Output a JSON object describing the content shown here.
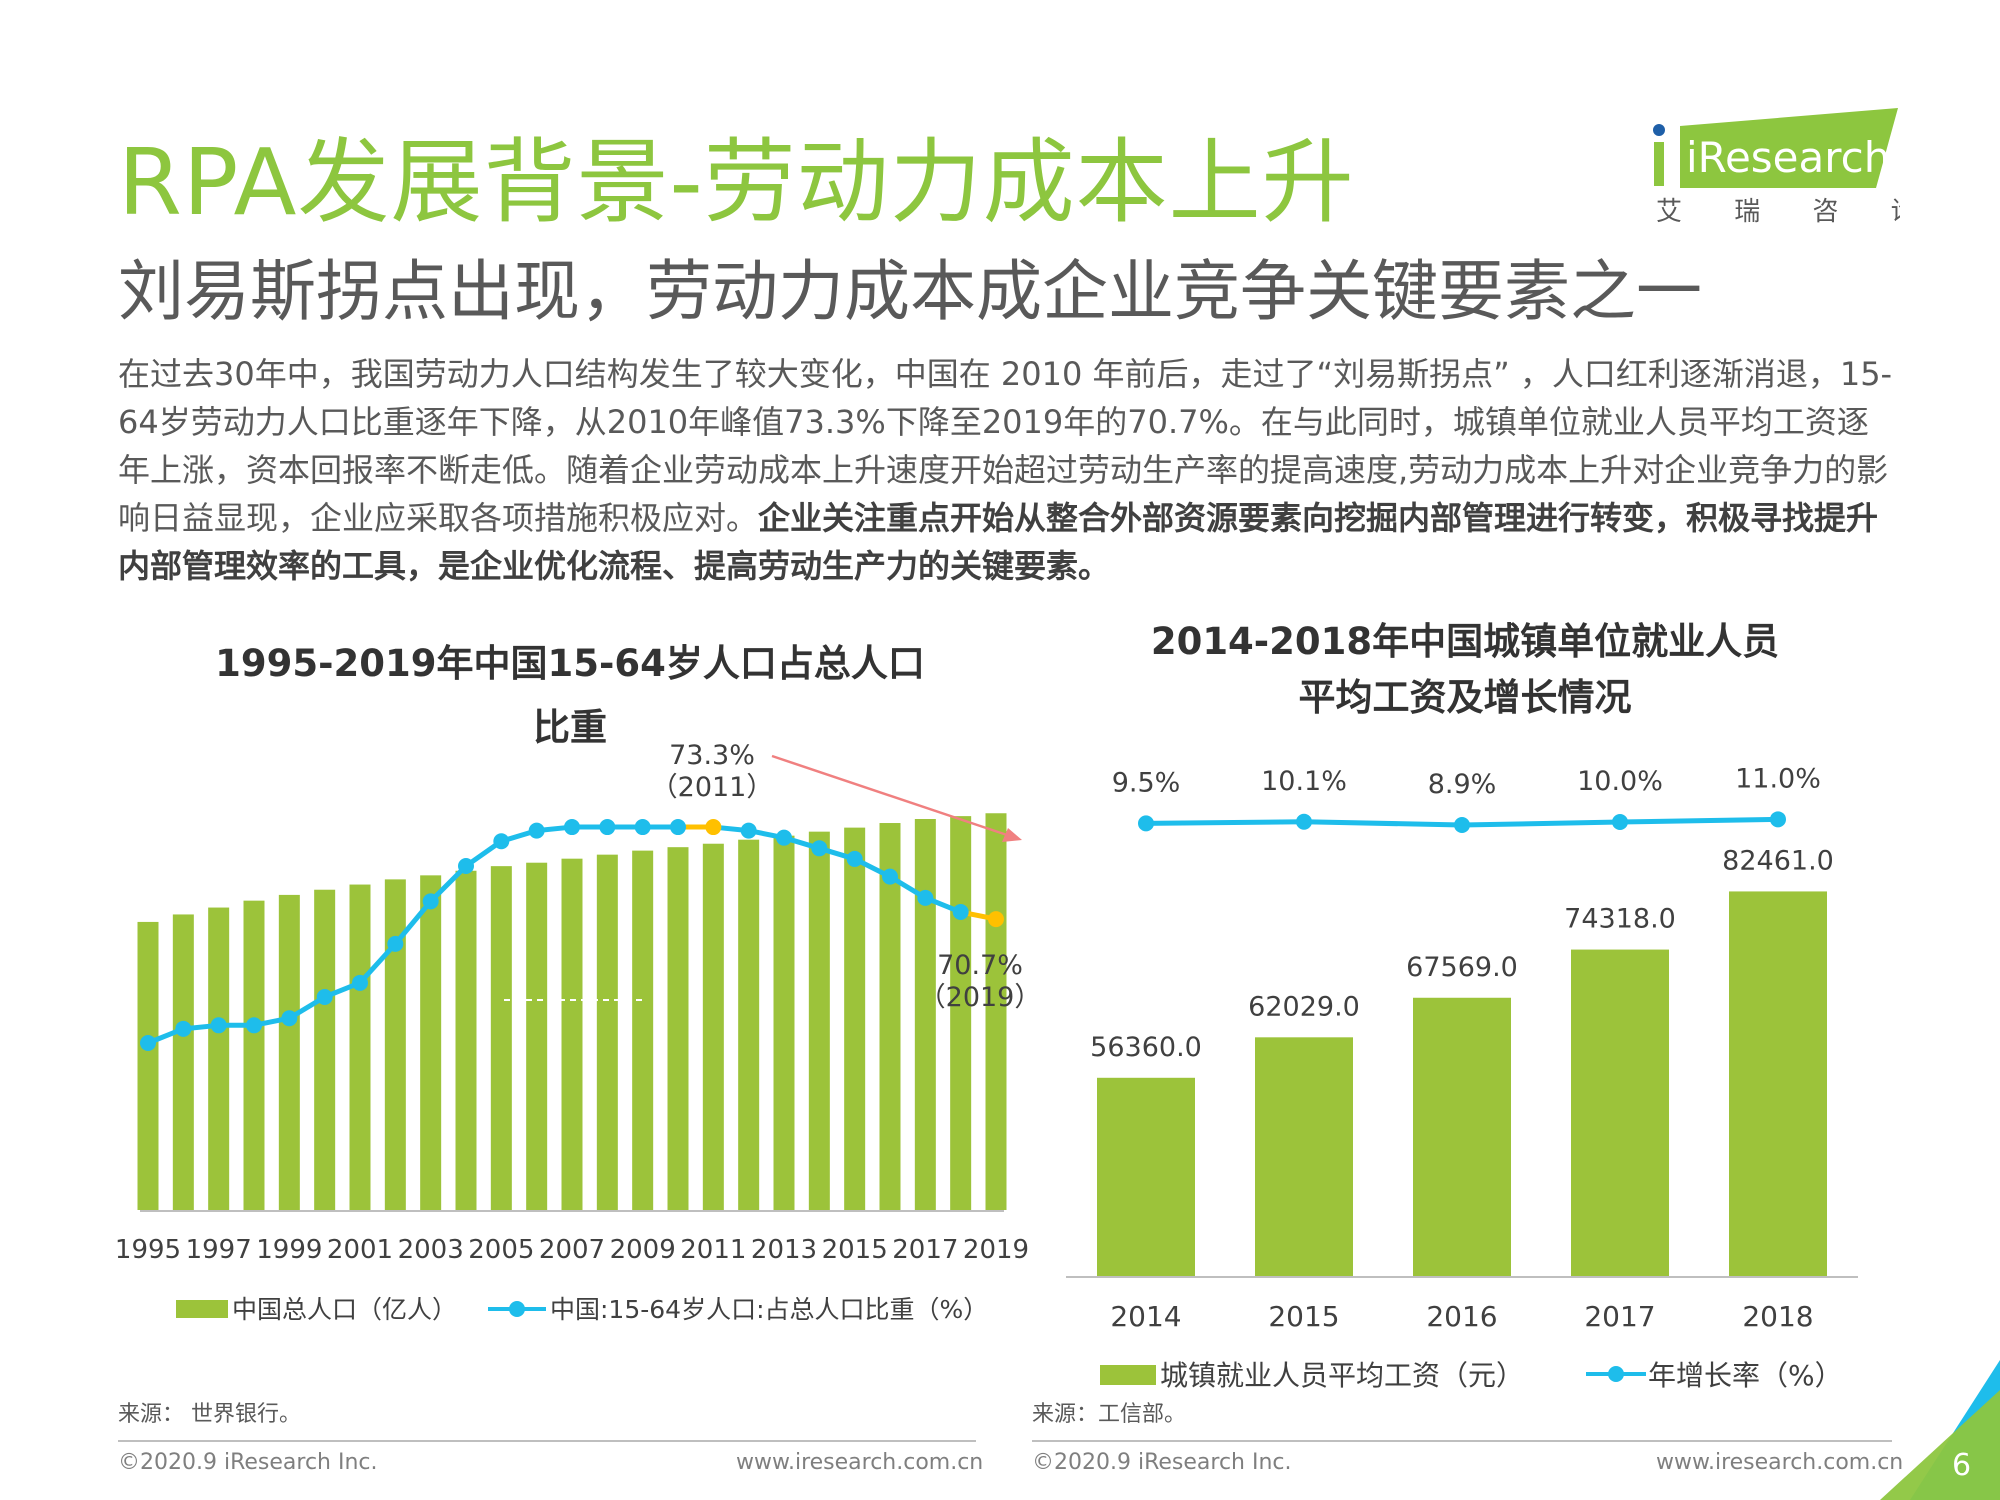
{
  "header": {
    "title": "RPA发展背景-劳动力成本上升",
    "subtitle": "刘易斯拐点出现，劳动力成本成企业竞争关键要素之一",
    "logo_text": "iResearch",
    "logo_sub": "艾 瑞 咨 询"
  },
  "intro": {
    "normal": "在过去30年中，我国劳动力人口结构发生了较大变化，中国在 2010 年前后，走过了“刘易斯拐点” ，人口红利逐渐消退，15-64岁劳动力人口比重逐年下降，从2010年峰值73.3%下降至2019年的70.7%。在与此同时，城镇单位就业人员平均工资逐年上涨，资本回报率不断走低。随着企业劳动成本上升速度开始超过劳动生产率的提高速度,劳动力成本上升对企业竞争力的影响日益显现，企业应采取各项措施积极应对。",
    "bold": "企业关注重点开始从整合外部资源要素向挖掘内部管理进行转变，积极寻找提升内部管理效率的工具，是企业优化流程、提高劳动生产力的关键要素。"
  },
  "colors": {
    "bar": "#9cc33a",
    "line": "#1ebdeb",
    "highlight": "#ffc000",
    "arrow": "#f08080",
    "title_green": "#8dc63f"
  },
  "chart_data": [
    {
      "type": "bar",
      "title": "1995-2019年中国15-64岁人口占总人口比重",
      "title_line1": "1995-2019年中国15-64岁人口占总人口",
      "title_line2": "比重",
      "x": [
        1995,
        1996,
        1997,
        1998,
        1999,
        2000,
        2001,
        2002,
        2003,
        2004,
        2005,
        2006,
        2007,
        2008,
        2009,
        2010,
        2011,
        2012,
        2013,
        2014,
        2015,
        2016,
        2017,
        2018,
        2019
      ],
      "x_tick_labels": [
        "1995",
        "1997",
        "1999",
        "2001",
        "2003",
        "2005",
        "2007",
        "2009",
        "2011",
        "2013",
        "2015",
        "2017",
        "2019"
      ],
      "series": [
        {
          "name": "中国总人口（亿人）",
          "type": "bar",
          "values": [
            12.11,
            12.24,
            12.36,
            12.48,
            12.58,
            12.67,
            12.76,
            12.85,
            12.92,
            13.0,
            13.08,
            13.14,
            13.21,
            13.28,
            13.35,
            13.41,
            13.47,
            13.54,
            13.61,
            13.68,
            13.75,
            13.83,
            13.9,
            13.95,
            14.0
          ]
        },
        {
          "name": "中国:15-64岁人口:占总人口比重（%）",
          "type": "line",
          "values": [
            67.2,
            67.6,
            67.7,
            67.7,
            67.9,
            68.5,
            68.9,
            70.0,
            71.2,
            72.2,
            72.9,
            73.2,
            73.3,
            73.3,
            73.3,
            73.3,
            73.3,
            73.2,
            73.0,
            72.7,
            72.4,
            71.9,
            71.3,
            70.9,
            70.7
          ]
        }
      ],
      "annotations": [
        {
          "text": "73.3%",
          "sub": "（2011）"
        },
        {
          "text": "70.7%",
          "sub": "（2019）"
        }
      ],
      "legend_position": "bottom"
    },
    {
      "type": "bar",
      "title": "2014-2018年中国城镇单位就业人员平均工资及增长情况",
      "title_line1": "2014-2018年中国城镇单位就业人员",
      "title_line2": "平均工资及增长情况",
      "categories": [
        "2014",
        "2015",
        "2016",
        "2017",
        "2018"
      ],
      "series": [
        {
          "name": "城镇就业人员平均工资（元）",
          "type": "bar",
          "values": [
            56360.0,
            62029.0,
            67569.0,
            74318.0,
            82461.0
          ],
          "labels": [
            "56360.0",
            "62029.0",
            "67569.0",
            "74318.0",
            "82461.0"
          ]
        },
        {
          "name": "年增长率（%）",
          "type": "line",
          "values": [
            9.5,
            10.1,
            8.9,
            10.0,
            11.0
          ],
          "labels": [
            "9.5%",
            "10.1%",
            "8.9%",
            "10.0%",
            "11.0%"
          ]
        }
      ],
      "legend_position": "bottom"
    }
  ],
  "sources": {
    "left": "来源： 世界银行。",
    "right": "来源：工信部。"
  },
  "footer": {
    "copyright": "©2020.9 iResearch Inc.",
    "site": "www.iresearch.com.cn",
    "page_number": "6"
  }
}
